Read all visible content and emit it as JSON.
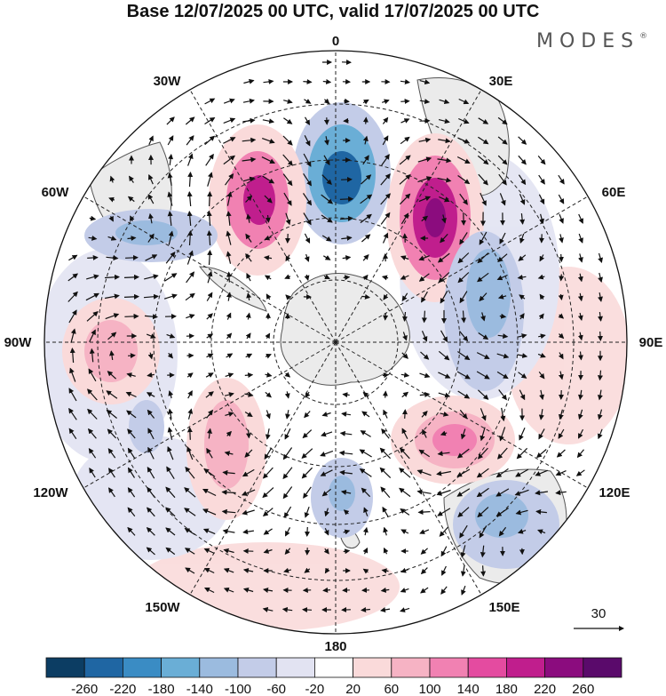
{
  "title": "Base 12/07/2025 00 UTC, valid 17/07/2025 00 UTC",
  "brand": {
    "name": "MODES",
    "mark": "®"
  },
  "map": {
    "projection": "south-polar-stereographic",
    "longitude_labels": [
      "0",
      "30E",
      "60E",
      "90E",
      "120E",
      "150E",
      "180",
      "150W",
      "120W",
      "90W",
      "60W",
      "30W"
    ],
    "graticule": "dashed",
    "land_color": "#ebebeb",
    "coast_color": "#555555"
  },
  "anomalies": [
    {
      "name": "positive-anomaly-south-atlantic",
      "value": 260,
      "sign": "positive"
    },
    {
      "name": "negative-anomaly-prime-meridian",
      "value": -180,
      "sign": "negative"
    },
    {
      "name": "positive-anomaly-west-atlantic",
      "value": 220,
      "sign": "positive"
    },
    {
      "name": "negative-anomaly-indian-ocean",
      "value": -100,
      "sign": "negative"
    },
    {
      "name": "positive-anomaly-south-indian",
      "value": 180,
      "sign": "positive"
    },
    {
      "name": "negative-anomaly-australia",
      "value": -100,
      "sign": "negative"
    },
    {
      "name": "negative-anomaly-drake-passage",
      "value": -100,
      "sign": "negative"
    },
    {
      "name": "positive-anomaly-southeast-pacific",
      "value": 100,
      "sign": "positive"
    },
    {
      "name": "positive-anomaly-central-pacific",
      "value": 100,
      "sign": "positive"
    },
    {
      "name": "negative-anomaly-ross-sea",
      "value": -60,
      "sign": "negative"
    }
  ],
  "vector_reference": {
    "label": "30"
  },
  "colorbar": {
    "colors": [
      "#0c3d63",
      "#1f66a3",
      "#3a8cc4",
      "#6aaed6",
      "#9bbbdf",
      "#c3cce8",
      "#e2e3f2",
      "#ffffff",
      "#fadada",
      "#f6b3c4",
      "#f181b2",
      "#e44ba0",
      "#c01e8d",
      "#8b0c7e",
      "#5a0a6b"
    ],
    "ticks": [
      "-260",
      "-220",
      "-180",
      "-140",
      "-100",
      "-60",
      "-20",
      "20",
      "60",
      "100",
      "140",
      "180",
      "220",
      "260"
    ]
  }
}
